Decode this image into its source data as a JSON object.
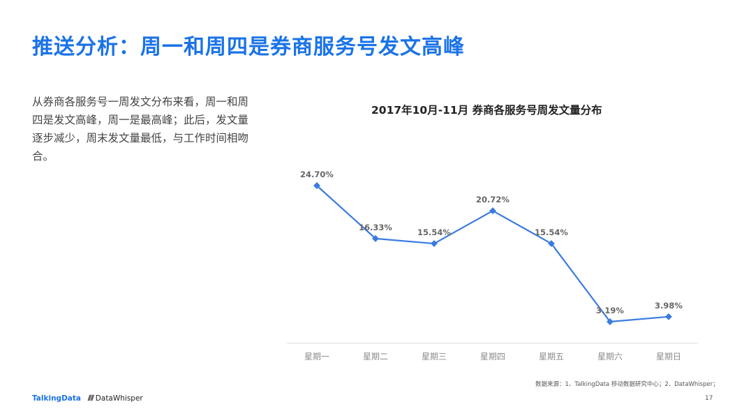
{
  "slide": {
    "title": "推送分析：周一和周四是券商服务号发文高峰",
    "description": "从券商各服务号一周发文分布来看，周一和周四是发文高峰，周一是最高峰；此后，发文量逐步减少，周末发文量最低，与工作时间相吻合。",
    "source": "数据来源：1、TalkingData 移动数据研究中心；2、DataWhisper；",
    "page_number": "17",
    "logo_left": "TalkingData",
    "logo_right": "DataWhisper"
  },
  "chart_data": {
    "type": "line",
    "title": "2017年10月-11月 券商各服务号周发文量分布",
    "categories": [
      "星期一",
      "星期二",
      "星期三",
      "星期四",
      "星期五",
      "星期六",
      "星期日"
    ],
    "values": [
      24.7,
      16.33,
      15.54,
      20.72,
      15.54,
      3.19,
      3.98
    ],
    "data_labels": [
      "24.70%",
      "16.33%",
      "15.54%",
      "20.72%",
      "15.54%",
      "3.19%",
      "3.98%"
    ],
    "unit": "%",
    "ylim": [
      0,
      25
    ],
    "grid": false,
    "legend": "none",
    "line_color": "#3a7be0",
    "axis_color": "#d9d9d9",
    "label_color": "#666666",
    "tick_color": "#8c8c8c"
  }
}
